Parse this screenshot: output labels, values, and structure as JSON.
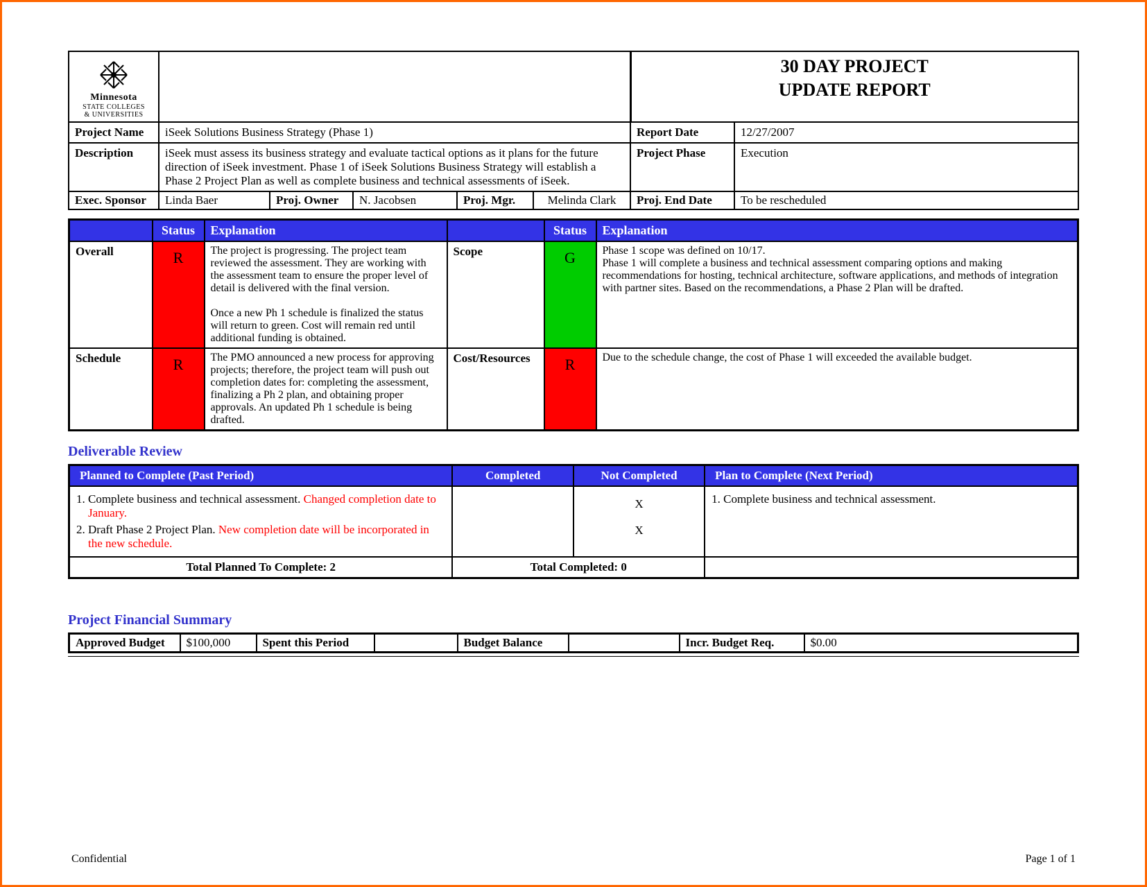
{
  "colors": {
    "frame_border": "#ff6600",
    "status_header_bg": "#3333e6",
    "status_R_bg": "#ff0000",
    "status_G_bg": "#00cc00",
    "section_title": "#3333cc",
    "note_text": "#ff0000"
  },
  "header": {
    "logo_line1": "Minnesota",
    "logo_line2": "STATE COLLEGES",
    "logo_line3": "& UNIVERSITIES",
    "title_line1": "30 DAY PROJECT",
    "title_line2": "UPDATE REPORT"
  },
  "info": {
    "project_name_label": "Project Name",
    "project_name": "iSeek Solutions Business Strategy (Phase 1)",
    "report_date_label": "Report Date",
    "report_date": "12/27/2007",
    "description_label": "Description",
    "description": "iSeek must assess its business strategy and evaluate tactical options as it plans for the future direction of iSeek investment.  Phase 1 of iSeek Solutions Business Strategy will establish a Phase 2 Project Plan as well as complete business and technical assessments of iSeek.",
    "project_phase_label": "Project Phase",
    "project_phase": "Execution",
    "exec_sponsor_label": "Exec. Sponsor",
    "exec_sponsor": "Linda Baer",
    "proj_owner_label": "Proj. Owner",
    "proj_owner": "N. Jacobsen",
    "proj_mgr_label": "Proj. Mgr.",
    "proj_mgr": "Melinda Clark",
    "proj_end_date_label": "Proj. End Date",
    "proj_end_date": "To be rescheduled"
  },
  "status_table": {
    "col_status": "Status",
    "col_explanation": "Explanation",
    "rows": [
      {
        "left_label": "Overall",
        "left_status": "R",
        "left_explanation": "The project is progressing.  The project team reviewed the assessment.  They are working with the assessment team to ensure the proper level of detail is delivered with the final version.\n\nOnce a new Ph 1 schedule is finalized the status will return to green.  Cost will remain red until additional funding is obtained.",
        "right_label": "Scope",
        "right_status": "G",
        "right_explanation": "Phase 1 scope was defined on 10/17.\nPhase 1 will complete a business and technical assessment comparing options and making recommendations for hosting, technical architecture, software applications, and methods of integration with partner sites. Based on the recommendations, a Phase 2 Plan will be drafted."
      },
      {
        "left_label": "Schedule",
        "left_status": "R",
        "left_explanation": "The PMO announced a new process for approving projects; therefore, the project team will push out completion dates for:  completing the assessment, finalizing a Ph 2 plan, and obtaining proper approvals.  An updated Ph 1 schedule is being drafted.",
        "right_label": "Cost/Resources",
        "right_status": "R",
        "right_explanation": "Due to the schedule change, the cost of Phase 1 will exceeded the available budget."
      }
    ]
  },
  "deliverable": {
    "section_title": "Deliverable Review",
    "col_planned": "Planned to Complete (Past Period)",
    "col_completed": "Completed",
    "col_not_completed": "Not Completed",
    "col_plan_next": "Plan to Complete (Next Period)",
    "planned_items": [
      {
        "text": "Complete business and technical assessment.  ",
        "note": "Changed completion date to January."
      },
      {
        "text": "Draft Phase 2 Project Plan.  ",
        "note": "New completion date will be incorporated in the new schedule."
      }
    ],
    "not_completed_marks": [
      "X",
      "X"
    ],
    "next_items": [
      {
        "text": "Complete business and technical assessment."
      }
    ],
    "total_planned_label": "Total Planned To Complete: 2",
    "total_completed_label": "Total Completed: 0"
  },
  "financial": {
    "section_title": "Project Financial Summary",
    "approved_budget_label": "Approved Budget",
    "approved_budget": "$100,000",
    "spent_label": "Spent this Period",
    "spent": "",
    "balance_label": "Budget Balance",
    "balance": "",
    "incr_label": "Incr. Budget Req.",
    "incr": "$0.00"
  },
  "footer": {
    "left": "Confidential",
    "right": "Page 1 of 1"
  }
}
